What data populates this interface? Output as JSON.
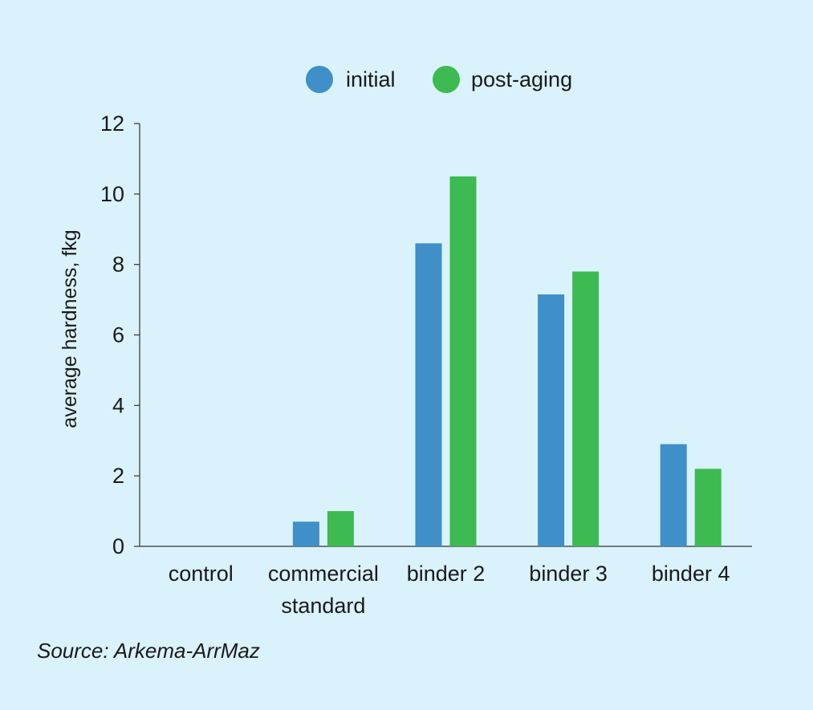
{
  "colors": {
    "background": "#d9f2fb",
    "initial": "#3f8fc8",
    "post_aging": "#3dba51",
    "axis": "#333333"
  },
  "source": "Source: Arkema-ArrMaz",
  "chart_data": {
    "type": "bar",
    "title": "",
    "xlabel": "",
    "ylabel": "average hardness, fkg",
    "ylim": [
      0,
      12
    ],
    "yticks": [
      0,
      2,
      4,
      6,
      8,
      10,
      12
    ],
    "grid": false,
    "legend_position": "top-center",
    "categories": [
      [
        "control"
      ],
      [
        "commercial",
        "standard"
      ],
      [
        "binder 2"
      ],
      [
        "binder 3"
      ],
      [
        "binder 4"
      ]
    ],
    "series": [
      {
        "name": "initial",
        "color": "#3f8fc8",
        "values": [
          0,
          0.7,
          8.6,
          7.15,
          2.9
        ]
      },
      {
        "name": "post-aging",
        "color": "#3dba51",
        "values": [
          0,
          1.0,
          10.5,
          7.8,
          2.2
        ]
      }
    ]
  }
}
